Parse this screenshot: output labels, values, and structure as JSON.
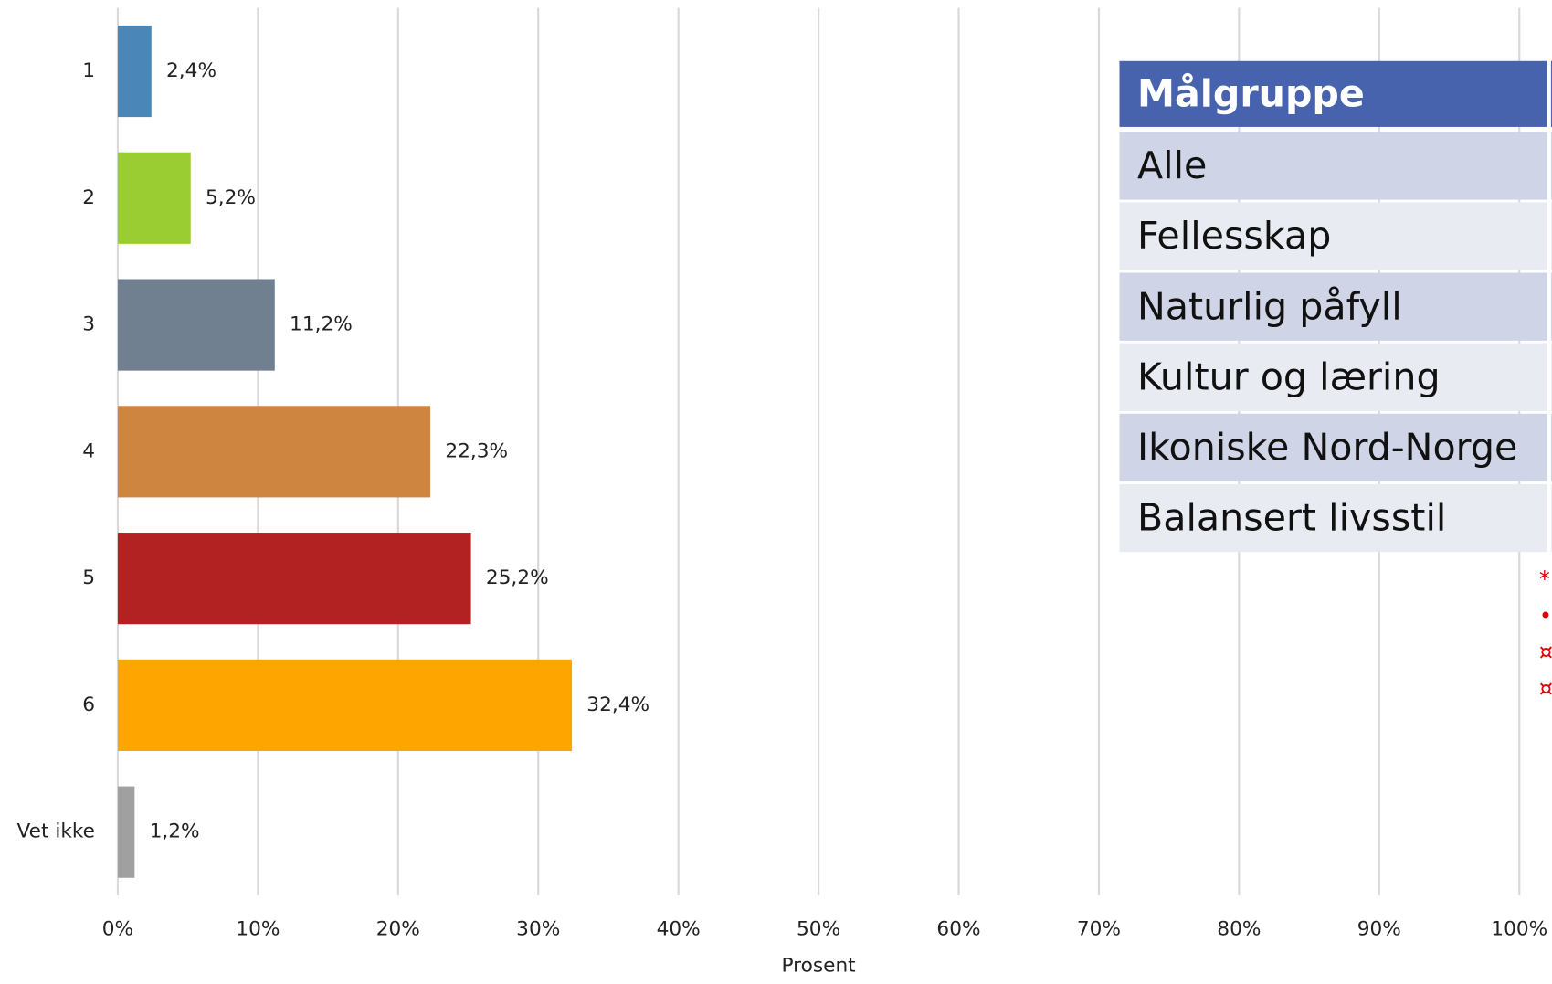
{
  "chart_data": {
    "type": "barh",
    "categories": [
      "1",
      "2",
      "3",
      "4",
      "5",
      "6",
      "Vet ikke"
    ],
    "values": [
      2.4,
      5.2,
      11.2,
      22.3,
      25.2,
      32.4,
      1.2
    ],
    "value_labels": [
      "2,4%",
      "5,2%",
      "11,2%",
      "22,3%",
      "25,2%",
      "32,4%",
      "1,2%"
    ],
    "colors": [
      "#4a86b8",
      "#9acd32",
      "#708090",
      "#cd853f",
      "#b22222",
      "#ffa500",
      "#a0a0a0"
    ],
    "xlabel": "Prosent",
    "xlim": [
      0,
      100
    ],
    "xticks": [
      {
        "value": 0,
        "label": "0%"
      },
      {
        "value": 10,
        "label": "10%"
      },
      {
        "value": 20,
        "label": "20%"
      },
      {
        "value": 30,
        "label": "30%"
      },
      {
        "value": 40,
        "label": "40%"
      },
      {
        "value": 50,
        "label": "50%"
      },
      {
        "value": 60,
        "label": "60%"
      },
      {
        "value": 70,
        "label": "70%"
      },
      {
        "value": 80,
        "label": "80%"
      },
      {
        "value": 90,
        "label": "90%"
      },
      {
        "value": 100,
        "label": "100%"
      }
    ],
    "grid": true
  },
  "table": {
    "header": "Målgruppe",
    "rows": [
      "Alle",
      "Fellesskap",
      "Naturlig påfyll",
      "Kultur og læring",
      "Ikoniske Nord-Norge",
      "Balansert livsstil"
    ],
    "notes": [
      "*",
      "•",
      "¤",
      "¤"
    ]
  }
}
